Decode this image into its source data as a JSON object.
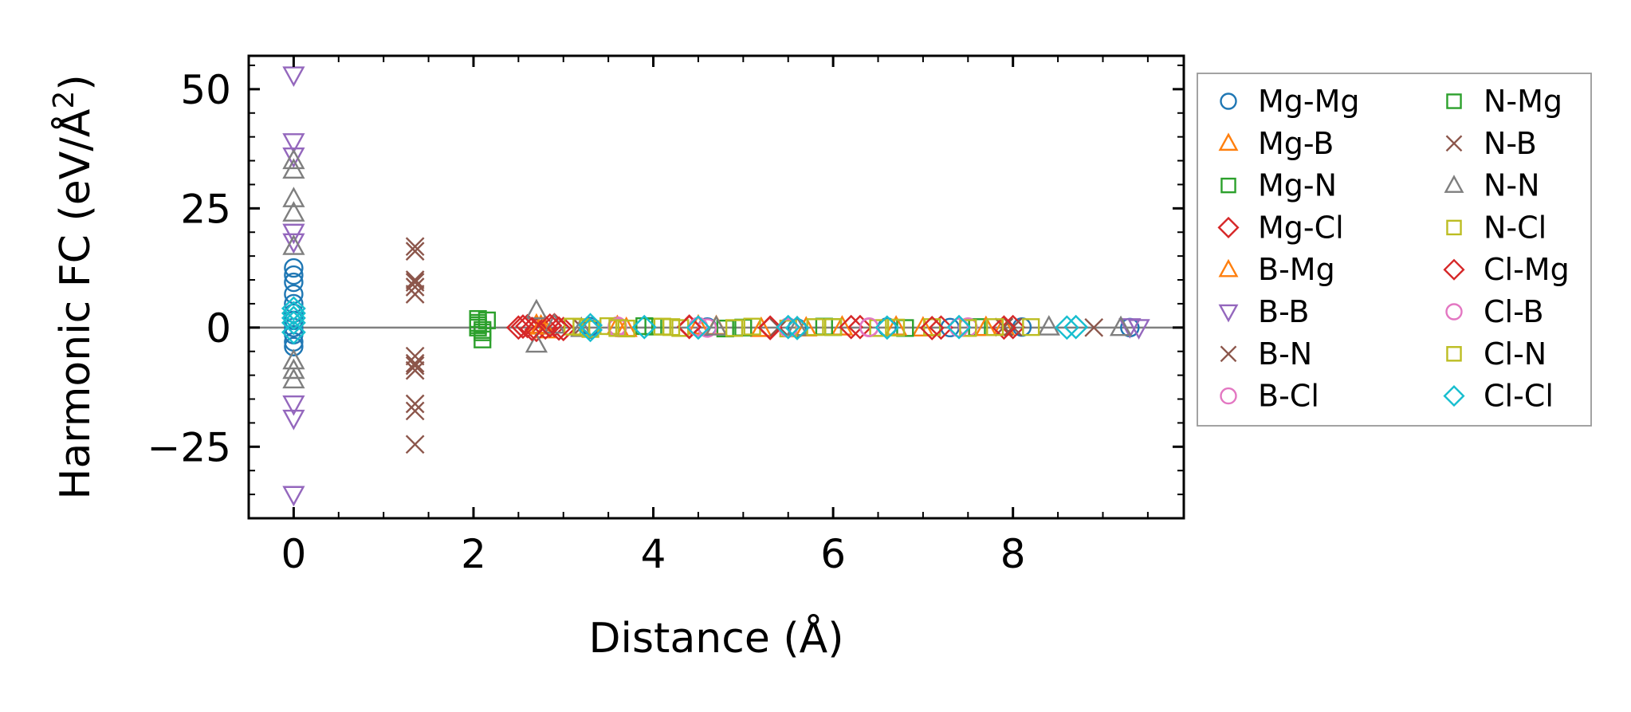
{
  "chart_data": {
    "type": "scatter",
    "xlabel": "Distance (Å)",
    "ylabel_main": "Harmonic FC (eV/Å",
    "ylabel_sup": "2",
    "ylabel_close": ")",
    "xlim": [
      -0.5,
      9.9
    ],
    "ylim": [
      -40,
      57
    ],
    "xticks": [
      0,
      2,
      4,
      6,
      8
    ],
    "xtick_labels": [
      "0",
      "2",
      "4",
      "6",
      "8"
    ],
    "yticks": [
      -25,
      0,
      25,
      50
    ],
    "ytick_labels": [
      "−25",
      "0",
      "25",
      "50"
    ],
    "x_minor_step": 0.5,
    "y_minor_step": 5,
    "zero_line": true,
    "grid": false,
    "legend_position": "outside-right",
    "legend_columns": 2,
    "series": [
      {
        "name": "Mg-Mg",
        "marker": "circle",
        "color": "#1f77b4",
        "points": [
          [
            0,
            12.5
          ],
          [
            0,
            11
          ],
          [
            0,
            9.5
          ],
          [
            0,
            7
          ],
          [
            0,
            5
          ],
          [
            0,
            3
          ],
          [
            0,
            1.5
          ],
          [
            0,
            0
          ],
          [
            0,
            -1.5
          ],
          [
            0,
            -3
          ],
          [
            0,
            -4
          ],
          [
            3.3,
            0.2
          ],
          [
            3.3,
            -0.3
          ],
          [
            4.6,
            0.1
          ],
          [
            5.6,
            -0.1
          ],
          [
            6.6,
            0.1
          ],
          [
            7.3,
            0
          ],
          [
            8.1,
            0.1
          ],
          [
            9.3,
            0
          ]
        ]
      },
      {
        "name": "Mg-B",
        "marker": "triangle-up",
        "color": "#ff7f0e",
        "points": [
          [
            2.7,
            0.5
          ],
          [
            2.8,
            -0.5
          ],
          [
            3.6,
            0.2
          ],
          [
            4.5,
            0.3
          ],
          [
            5.2,
            -0.2
          ],
          [
            6.1,
            0.1
          ],
          [
            7.0,
            -0.1
          ],
          [
            7.9,
            0.1
          ]
        ]
      },
      {
        "name": "Mg-N",
        "marker": "square",
        "color": "#2ca02c",
        "points": [
          [
            2.05,
            1.8
          ],
          [
            2.05,
            1
          ],
          [
            2.05,
            0
          ],
          [
            2.1,
            -1
          ],
          [
            2.1,
            -2.5
          ],
          [
            2.15,
            1.5
          ],
          [
            3.9,
            0.3
          ],
          [
            4.8,
            -0.2
          ],
          [
            5.9,
            0.2
          ],
          [
            6.8,
            -0.1
          ],
          [
            7.6,
            0.1
          ]
        ]
      },
      {
        "name": "Mg-Cl",
        "marker": "diamond",
        "color": "#d62728",
        "points": [
          [
            2.5,
            0
          ],
          [
            2.6,
            0.3
          ],
          [
            2.7,
            -0.5
          ],
          [
            2.8,
            0
          ],
          [
            2.9,
            0.5
          ],
          [
            3.0,
            -0.3
          ],
          [
            4.4,
            0.2
          ],
          [
            5.3,
            -0.1
          ],
          [
            6.3,
            0.1
          ],
          [
            7.2,
            0
          ],
          [
            8.0,
            0.1
          ]
        ]
      },
      {
        "name": "B-Mg",
        "marker": "triangle-up",
        "color": "#ff7f0e",
        "points": [
          [
            2.75,
            0.3
          ],
          [
            3.7,
            -0.2
          ],
          [
            4.7,
            0.2
          ],
          [
            5.7,
            -0.1
          ],
          [
            6.7,
            0.1
          ],
          [
            7.7,
            0
          ]
        ]
      },
      {
        "name": "B-B",
        "marker": "triangle-down",
        "color": "#9467bd",
        "points": [
          [
            0,
            53
          ],
          [
            0,
            39
          ],
          [
            0,
            36
          ],
          [
            0,
            20
          ],
          [
            0,
            18
          ],
          [
            0,
            -16
          ],
          [
            0,
            -19
          ],
          [
            0,
            -35
          ],
          [
            9.3,
            0.2
          ],
          [
            9.4,
            0
          ]
        ]
      },
      {
        "name": "B-N",
        "marker": "x",
        "color": "#8c564b",
        "points": [
          [
            1.35,
            17
          ],
          [
            1.35,
            16
          ],
          [
            1.35,
            10
          ],
          [
            1.35,
            8.5
          ],
          [
            1.35,
            7
          ],
          [
            1.35,
            -6
          ],
          [
            1.35,
            -7.5
          ],
          [
            1.35,
            -9
          ],
          [
            1.35,
            -16
          ],
          [
            1.35,
            -17.5
          ],
          [
            1.35,
            -24.5
          ],
          [
            5.4,
            0.1
          ],
          [
            8.0,
            0.1
          ],
          [
            8.9,
            0
          ]
        ]
      },
      {
        "name": "B-Cl",
        "marker": "circle",
        "color": "#e377c2",
        "points": [
          [
            3.6,
            0.3
          ],
          [
            4.5,
            0.2
          ],
          [
            4.6,
            -0.1
          ],
          [
            5.5,
            0.1
          ],
          [
            6.4,
            0
          ],
          [
            7.5,
            0.1
          ]
        ]
      },
      {
        "name": "N-Mg",
        "marker": "square",
        "color": "#2ca02c",
        "points": [
          [
            2.05,
            0.5
          ],
          [
            2.1,
            -0.5
          ],
          [
            4.0,
            0.2
          ],
          [
            5.0,
            0
          ],
          [
            6.0,
            0.1
          ]
        ]
      },
      {
        "name": "N-B",
        "marker": "x",
        "color": "#8c564b",
        "points": [
          [
            1.35,
            9.5
          ],
          [
            1.35,
            -8
          ],
          [
            3.2,
            0.1
          ],
          [
            5.4,
            0
          ],
          [
            7.9,
            0.1
          ]
        ]
      },
      {
        "name": "N-N",
        "marker": "triangle-up",
        "color": "#7f7f7f",
        "points": [
          [
            0,
            35
          ],
          [
            0,
            33
          ],
          [
            0,
            27
          ],
          [
            0,
            24
          ],
          [
            0,
            17
          ],
          [
            0,
            -7
          ],
          [
            0,
            -9
          ],
          [
            0,
            -11
          ],
          [
            2.7,
            3.5
          ],
          [
            2.7,
            -3.5
          ],
          [
            2.9,
            0.5
          ],
          [
            3.2,
            -0.2
          ],
          [
            4.7,
            0.1
          ],
          [
            5.6,
            0
          ],
          [
            8.4,
            0.1
          ],
          [
            9.2,
            0
          ]
        ]
      },
      {
        "name": "N-Cl",
        "marker": "square",
        "color": "#bcbd22",
        "points": [
          [
            3.1,
            0.2
          ],
          [
            3.3,
            -0.3
          ],
          [
            3.5,
            0.3
          ],
          [
            3.7,
            -0.2
          ],
          [
            4.1,
            0.2
          ],
          [
            4.3,
            -0.1
          ],
          [
            5.1,
            0.2
          ],
          [
            5.5,
            -0.2
          ],
          [
            6.0,
            0.1
          ],
          [
            6.5,
            -0.1
          ],
          [
            7.1,
            0.1
          ],
          [
            7.5,
            -0.1
          ],
          [
            8.2,
            0.1
          ]
        ]
      },
      {
        "name": "Cl-Mg",
        "marker": "diamond",
        "color": "#d62728",
        "points": [
          [
            2.55,
            0.2
          ],
          [
            2.65,
            -0.3
          ],
          [
            2.85,
            0.4
          ],
          [
            2.95,
            -0.2
          ],
          [
            4.4,
            0.1
          ],
          [
            5.3,
            0
          ],
          [
            6.2,
            0.1
          ],
          [
            7.1,
            -0.1
          ],
          [
            7.9,
            0
          ]
        ]
      },
      {
        "name": "Cl-B",
        "marker": "circle",
        "color": "#e377c2",
        "points": [
          [
            3.6,
            0
          ],
          [
            4.5,
            0.1
          ],
          [
            5.5,
            -0.1
          ],
          [
            6.4,
            0.1
          ],
          [
            7.4,
            0
          ]
        ]
      },
      {
        "name": "Cl-N",
        "marker": "square",
        "color": "#bcbd22",
        "points": [
          [
            3.2,
            0.1
          ],
          [
            3.6,
            -0.1
          ],
          [
            4.2,
            0.1
          ],
          [
            4.9,
            -0.1
          ],
          [
            5.8,
            0.1
          ],
          [
            6.7,
            0
          ],
          [
            7.8,
            0.1
          ]
        ]
      },
      {
        "name": "Cl-Cl",
        "marker": "diamond",
        "color": "#17becf",
        "points": [
          [
            0,
            4
          ],
          [
            0,
            3
          ],
          [
            0,
            2
          ],
          [
            0,
            1
          ],
          [
            0,
            -1
          ],
          [
            3.3,
            -0.5
          ],
          [
            3.3,
            0.5
          ],
          [
            3.9,
            0.1
          ],
          [
            4.5,
            0
          ],
          [
            5.5,
            0.1
          ],
          [
            5.6,
            -0.1
          ],
          [
            6.6,
            0
          ],
          [
            7.4,
            0.1
          ],
          [
            8.6,
            0
          ],
          [
            8.7,
            0.1
          ]
        ]
      }
    ]
  }
}
